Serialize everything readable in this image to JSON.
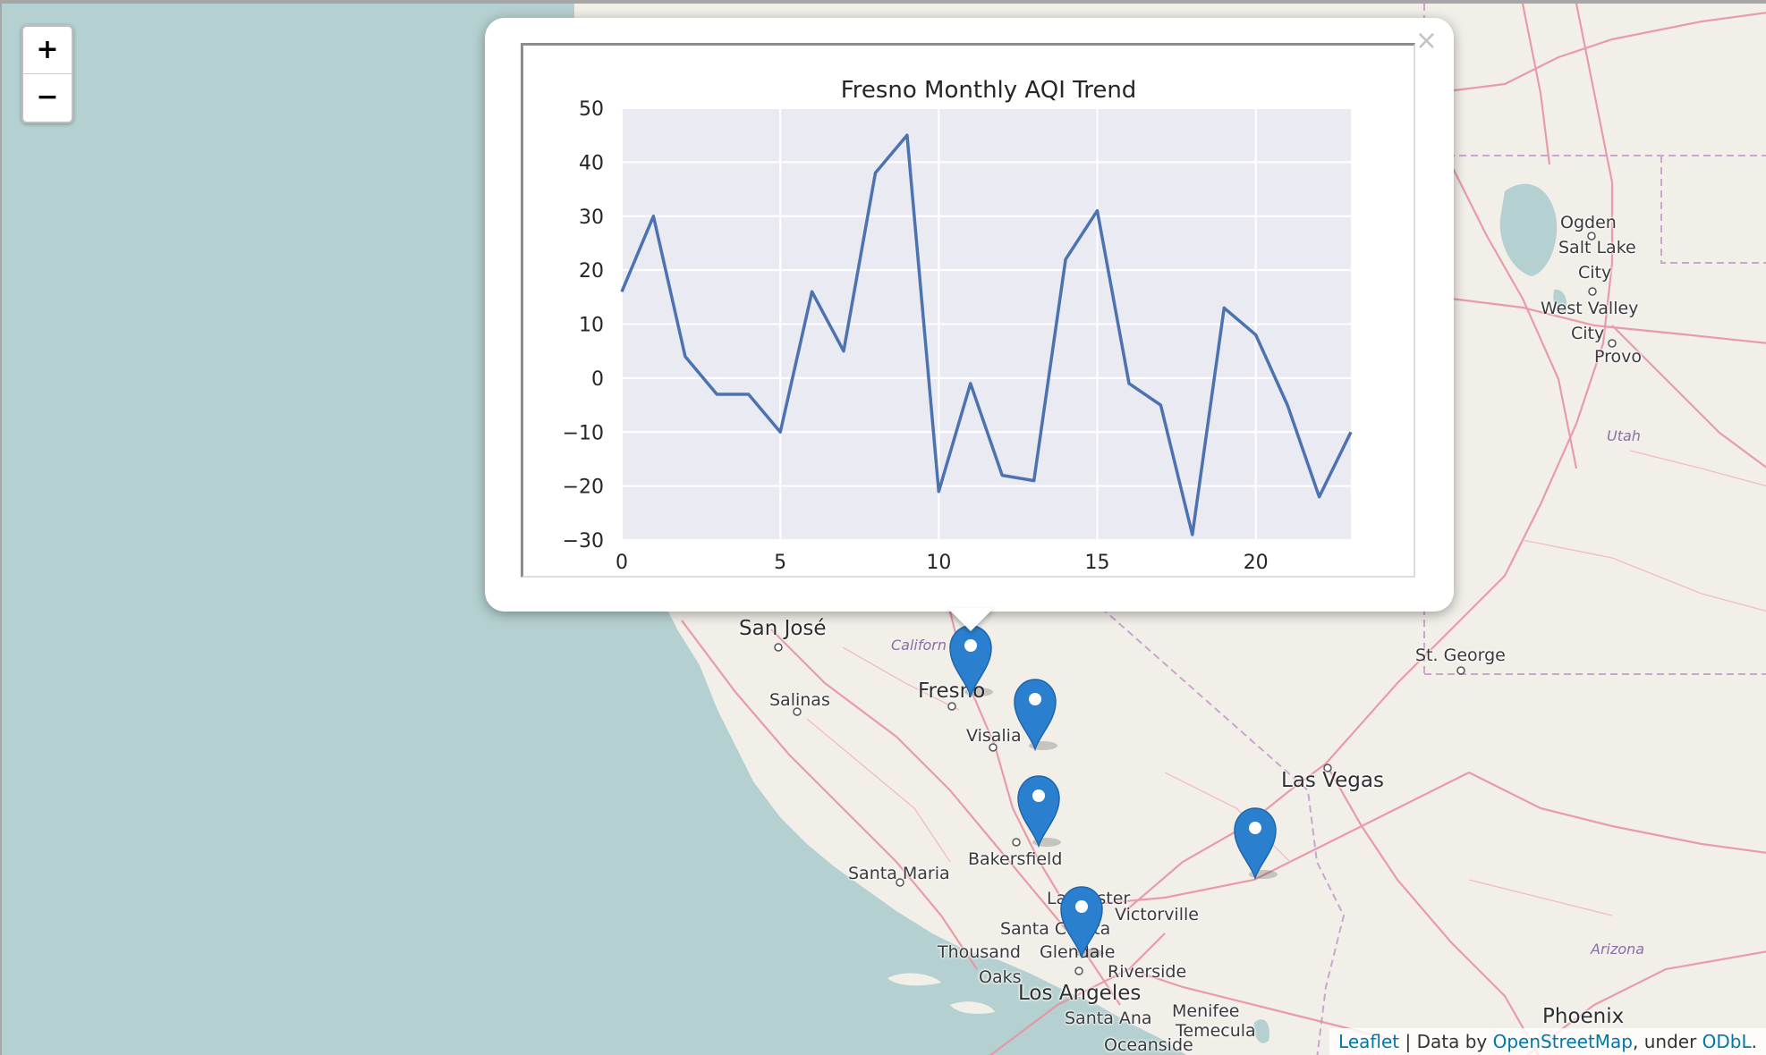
{
  "zoom": {
    "in_label": "+",
    "out_label": "−"
  },
  "popup": {
    "close_label": "×"
  },
  "chart_data": {
    "type": "line",
    "title": "Fresno Monthly AQI Trend",
    "xlabel": "",
    "ylabel": "",
    "xlim": [
      0,
      23
    ],
    "ylim": [
      -30,
      50
    ],
    "xticks": [
      0,
      5,
      10,
      15,
      20
    ],
    "yticks": [
      50,
      40,
      30,
      20,
      10,
      0,
      -10,
      -20,
      -30
    ],
    "ytick_labels": [
      "50",
      "40",
      "30",
      "20",
      "10",
      "0",
      "−10",
      "−20",
      "−30"
    ],
    "grid": true,
    "background": "#eaeaf2",
    "line_color": "#4c72b0",
    "series": [
      {
        "x": [
          0,
          1,
          2,
          3,
          4,
          5,
          6,
          7,
          8,
          9,
          10,
          11,
          12,
          13,
          14,
          15,
          16,
          17,
          18,
          19,
          20,
          21,
          22,
          23
        ],
        "values": [
          16,
          30,
          4,
          -3,
          -3,
          -10,
          16,
          5,
          38,
          45,
          -21,
          -1,
          -18,
          -19,
          22,
          31,
          -1,
          -5,
          -29,
          13,
          8,
          -5,
          -22,
          -10
        ]
      }
    ]
  },
  "map": {
    "labels": {
      "san_jose": "San José",
      "california": "Californ",
      "fresno": "Fresno",
      "salinas": "Salinas",
      "visalia": "Visalia",
      "bakersfield": "Bakersfield",
      "santa_maria": "Santa Maria",
      "lancaster": "Lancaster",
      "victorville": "Victorville",
      "santa_clarita": "Santa Clarita",
      "thousand_oaks_1": "Thousand",
      "thousand_oaks_2": "Oaks",
      "glendale": "Glendale",
      "riverside": "Riverside",
      "los_angeles": "Los Angeles",
      "santa_ana": "Santa Ana",
      "menifee": "Menifee",
      "temecula": "Temecula",
      "oceanside": "Oceanside",
      "las_vegas": "Las Vegas",
      "st_george": "St. George",
      "phoenix": "Phoenix",
      "ogden": "Ogden",
      "salt_lake_1": "Salt Lake",
      "salt_lake_2": "City",
      "west_valley_1": "West Valley",
      "west_valley_2": "City",
      "provo": "Provo",
      "utah": "Utah",
      "arizona": "Arizona"
    },
    "colors": {
      "water": "#b5d0d0",
      "land": "#f2efe9",
      "road": "#e892a2",
      "marker": "#2a7fcf"
    },
    "markers": [
      "fresno-marker",
      "visalia-marker",
      "bakersfield-marker",
      "lancaster-marker",
      "mojave-marker"
    ]
  },
  "attribution": {
    "leaflet": "Leaflet",
    "separator": " | Data by ",
    "osm": "OpenStreetMap",
    "under": ", under ",
    "odbl": "ODbL",
    "end": "."
  }
}
